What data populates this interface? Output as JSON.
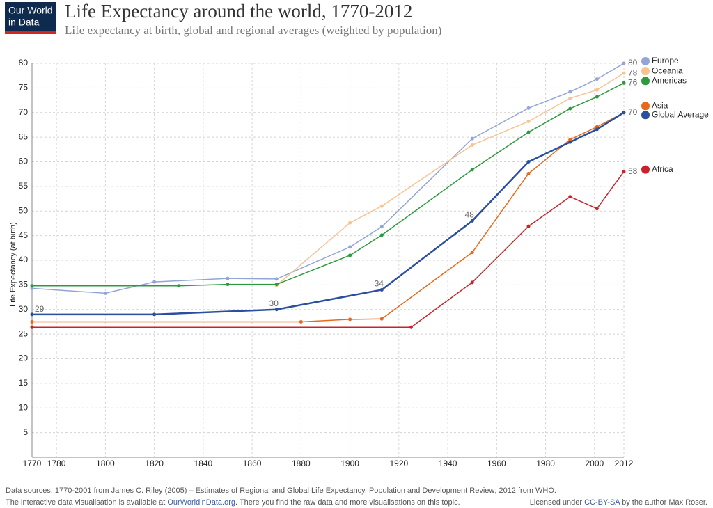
{
  "header": {
    "logo": [
      "Our World",
      "in Data"
    ]
  },
  "chart_data": {
    "type": "line",
    "title": "Life Expectancy around the world, 1770-2012",
    "subtitle": "Life expectancy at birth, global and regional averages (weighted by population)",
    "y_label": "Life Expectancy (at birth)",
    "xlim": [
      1770,
      2012
    ],
    "xticks": [
      1770,
      1780,
      1800,
      1820,
      1840,
      1860,
      1880,
      1900,
      1920,
      1940,
      1960,
      1980,
      2000,
      2012
    ],
    "ylim": [
      0,
      80
    ],
    "yticks": [
      5,
      10,
      15,
      20,
      25,
      30,
      35,
      40,
      45,
      50,
      55,
      60,
      65,
      70,
      75,
      80
    ],
    "grid": true,
    "series": [
      {
        "name": "Europe",
        "color": "#93a5d6",
        "x": [
          1770,
          1800,
          1820,
          1850,
          1870,
          1900,
          1913,
          1950,
          1973,
          1990,
          2001,
          2012
        ],
        "values": [
          34.3,
          33.3,
          35.6,
          36.3,
          36.2,
          42.7,
          46.8,
          64.7,
          70.9,
          74.2,
          76.8,
          80
        ],
        "value_labels": [
          null,
          null,
          null,
          null,
          null,
          null,
          null,
          null,
          null,
          null,
          null,
          "80"
        ]
      },
      {
        "name": "Oceania",
        "color": "#f8c393",
        "x": [
          1870,
          1900,
          1913,
          1950,
          1973,
          1990,
          2001,
          2012
        ],
        "values": [
          34.9,
          47.6,
          51,
          63.4,
          68.2,
          72.9,
          74.6,
          78
        ],
        "value_labels": [
          null,
          null,
          null,
          null,
          null,
          null,
          null,
          "78"
        ]
      },
      {
        "name": "Americas",
        "color": "#2e9a3f",
        "x": [
          1770,
          1830,
          1850,
          1870,
          1900,
          1913,
          1950,
          1973,
          1990,
          2001,
          2012
        ],
        "values": [
          34.8,
          34.8,
          35.1,
          35.1,
          41.0,
          45.1,
          58.4,
          66.0,
          70.8,
          73.2,
          76
        ],
        "value_labels": [
          null,
          null,
          null,
          null,
          null,
          null,
          null,
          null,
          null,
          null,
          "76"
        ]
      },
      {
        "name": "Asia",
        "color": "#e8691d",
        "x": [
          1770,
          1880,
          1900,
          1913,
          1950,
          1973,
          1990,
          2001,
          2012
        ],
        "values": [
          27.5,
          27.5,
          28.0,
          28.1,
          41.6,
          57.6,
          64.5,
          67.1,
          70
        ],
        "value_labels": [
          null,
          null,
          null,
          null,
          null,
          null,
          null,
          null,
          null
        ]
      },
      {
        "name": "Global Average",
        "color": "#2b4f9e",
        "x": [
          1770,
          1820,
          1870,
          1913,
          1950,
          1973,
          1990,
          2001,
          2012
        ],
        "values": [
          29,
          29,
          30,
          34,
          48,
          60,
          64.0,
          66.6,
          70
        ],
        "value_labels": [
          "29",
          null,
          "30",
          "34",
          "48",
          null,
          null,
          null,
          "70"
        ]
      },
      {
        "name": "Africa",
        "color": "#c8232b",
        "x": [
          1770,
          1925,
          1950,
          1973,
          1990,
          2001,
          2012
        ],
        "values": [
          26.4,
          26.4,
          35.5,
          46.9,
          52.9,
          50.5,
          58
        ],
        "value_labels": [
          null,
          null,
          null,
          null,
          null,
          null,
          "58"
        ]
      }
    ]
  },
  "footer": {
    "sources": "Data sources: 1770-2001 from James C. Riley (2005) – Estimates of Regional and Global Life Expectancy. Population and Development Review; 2012 from WHO.",
    "note_before": "The interactive data visualisation is available at",
    "note_link": "OurWorldinData.org",
    "note_after": ". There you find the raw data and more visualisations on this topic.",
    "license_before": "Licensed under",
    "license_link": "CC-BY-SA",
    "license_after": "by the author Max Roser."
  }
}
